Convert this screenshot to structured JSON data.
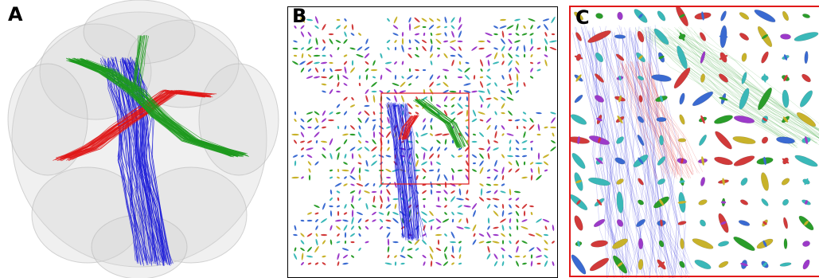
{
  "panels": [
    {
      "label": "A"
    },
    {
      "label": "B"
    },
    {
      "label": "C"
    }
  ],
  "colors": {
    "tract_blue": "#1a1ad8",
    "tract_red": "#e01818",
    "tract_green": "#1e9a1e",
    "frame_black": "#000000",
    "frame_red": "#e01818",
    "tissue": "#d4d4d4"
  }
}
